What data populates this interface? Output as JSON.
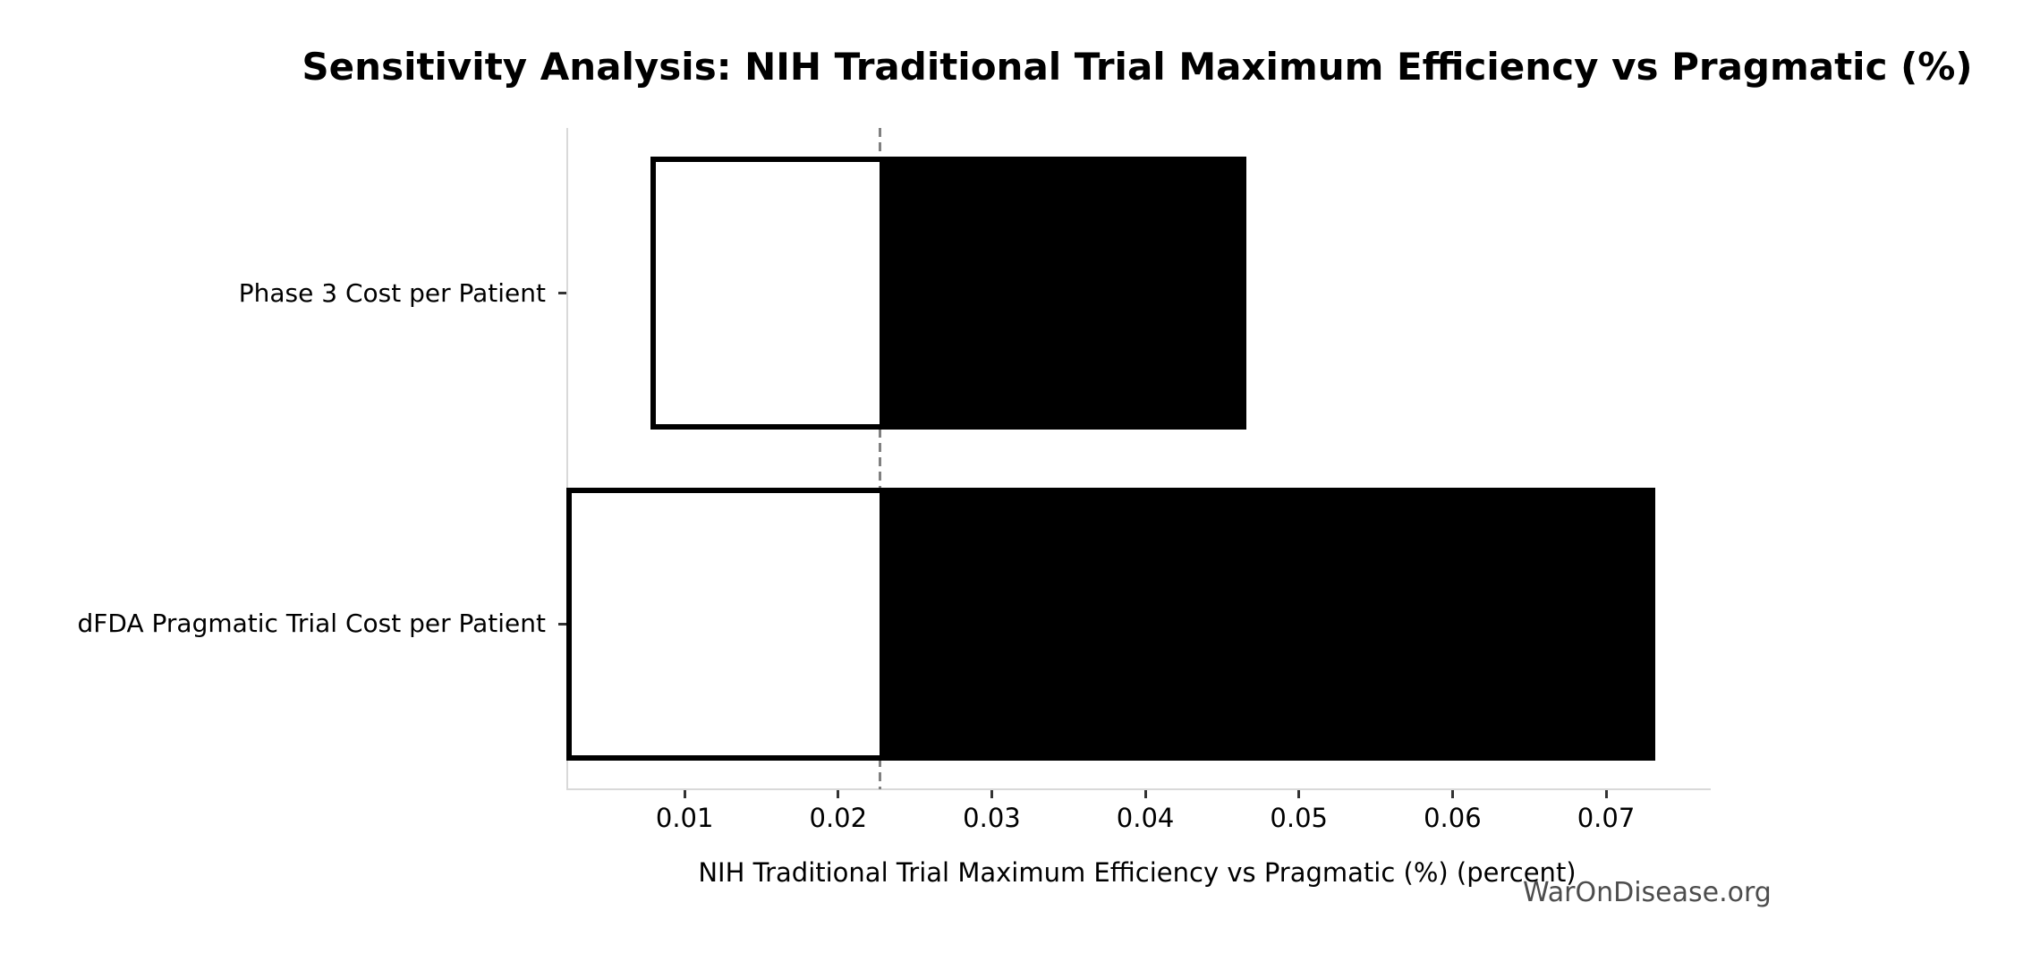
{
  "chart_data": {
    "type": "bar",
    "subtype": "tornado-sensitivity",
    "orientation": "horizontal",
    "title": "Sensitivity Analysis: NIH Traditional Trial Maximum Efficiency vs Pragmatic (%)",
    "xlabel": "NIH Traditional Trial Maximum Efficiency vs Pragmatic (%) (percent)",
    "watermark": "WarOnDisease.org",
    "categories": [
      "Phase 3 Cost per Patient",
      "dFDA Pragmatic Trial Cost per Patient"
    ],
    "base_value": 0.0227,
    "bars": [
      {
        "category": "Phase 3 Cost per Patient",
        "low": 0.0078,
        "high": 0.0466
      },
      {
        "category": "dFDA Pragmatic Trial Cost per Patient",
        "low": 0.0023,
        "high": 0.0732
      }
    ],
    "series": [
      {
        "name": "low-side (white segment)",
        "values": [
          0.0078,
          0.0023
        ]
      },
      {
        "name": "high-side (black segment)",
        "values": [
          0.0466,
          0.0732
        ]
      }
    ],
    "xlim": [
      0.0023,
      0.0767
    ],
    "xticks": [
      0.01,
      0.02,
      0.03,
      0.04,
      0.05,
      0.06,
      0.07
    ],
    "xtick_labels": [
      "0.01",
      "0.02",
      "0.03",
      "0.04",
      "0.05",
      "0.06",
      "0.07"
    ],
    "grid": false,
    "legend": false,
    "colors": {
      "low_segment_fill": "#ffffff",
      "high_segment_fill": "#000000",
      "bar_edge": "#000000",
      "baseline": "#808080",
      "spine": "#d9d9d9",
      "tick": "#333333",
      "text": "#000000",
      "watermark": "#4d4d4d",
      "background": "#ffffff"
    }
  }
}
